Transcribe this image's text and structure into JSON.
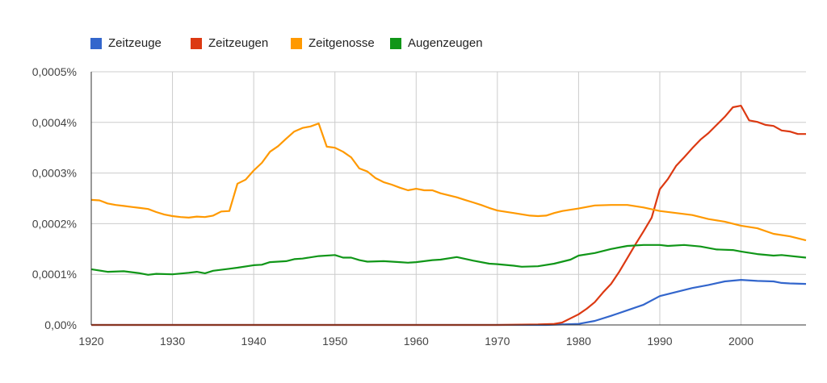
{
  "chart_data": {
    "type": "line",
    "title": "",
    "xlabel": "",
    "ylabel": "",
    "xlim": [
      1920,
      2008
    ],
    "ylim": [
      0,
      0.0005
    ],
    "grid": true,
    "legend_position": "top",
    "x_ticks": [
      1920,
      1930,
      1940,
      1950,
      1960,
      1970,
      1980,
      1990,
      2000
    ],
    "x_tick_labels": [
      "1920",
      "1930",
      "1940",
      "1950",
      "1960",
      "1970",
      "1980",
      "1990",
      "2000"
    ],
    "y_ticks": [
      0,
      0.0001,
      0.0002,
      0.0003,
      0.0004,
      0.0005
    ],
    "y_tick_labels": [
      "0,00%",
      "0,0001%",
      "0,0002%",
      "0,0003%",
      "0,0004%",
      "0,0005%"
    ],
    "y_unit": "% of corpus",
    "series": [
      {
        "name": "Zeitzeuge",
        "color": "#3366cc",
        "points": [
          [
            1920,
            0
          ],
          [
            1930,
            0
          ],
          [
            1940,
            0
          ],
          [
            1950,
            0
          ],
          [
            1960,
            0
          ],
          [
            1970,
            0
          ],
          [
            1976,
            0
          ],
          [
            1978,
            1e-06
          ],
          [
            1980,
            2e-06
          ],
          [
            1982,
            8e-06
          ],
          [
            1984,
            1.8e-05
          ],
          [
            1986,
            2.9e-05
          ],
          [
            1988,
            4e-05
          ],
          [
            1990,
            5.7e-05
          ],
          [
            1992,
            6.5e-05
          ],
          [
            1994,
            7.3e-05
          ],
          [
            1996,
            7.9e-05
          ],
          [
            1998,
            8.6e-05
          ],
          [
            2000,
            8.9e-05
          ],
          [
            2002,
            8.7e-05
          ],
          [
            2004,
            8.6e-05
          ],
          [
            2005,
            8.3e-05
          ],
          [
            2006,
            8.2e-05
          ],
          [
            2008,
            8.1e-05
          ]
        ]
      },
      {
        "name": "Zeitzeugen",
        "color": "#dc3912",
        "points": [
          [
            1920,
            0
          ],
          [
            1930,
            0
          ],
          [
            1940,
            0
          ],
          [
            1950,
            0
          ],
          [
            1960,
            0
          ],
          [
            1970,
            0
          ],
          [
            1975,
            1e-06
          ],
          [
            1977,
            2e-06
          ],
          [
            1978,
            5e-06
          ],
          [
            1979,
            1.3e-05
          ],
          [
            1980,
            2.1e-05
          ],
          [
            1981,
            3.2e-05
          ],
          [
            1982,
            4.5e-05
          ],
          [
            1983,
            6.4e-05
          ],
          [
            1984,
            8.1e-05
          ],
          [
            1985,
            0.000105
          ],
          [
            1986,
            0.000132
          ],
          [
            1987,
            0.000159
          ],
          [
            1988,
            0.000185
          ],
          [
            1989,
            0.000212
          ],
          [
            1990,
            0.000268
          ],
          [
            1991,
            0.000288
          ],
          [
            1992,
            0.000314
          ],
          [
            1993,
            0.000331
          ],
          [
            1994,
            0.000349
          ],
          [
            1995,
            0.000366
          ],
          [
            1996,
            0.000379
          ],
          [
            1997,
            0.000395
          ],
          [
            1998,
            0.000411
          ],
          [
            1999,
            0.00043
          ],
          [
            2000,
            0.000433
          ],
          [
            2001,
            0.000404
          ],
          [
            2002,
            0.000401
          ],
          [
            2003,
            0.000395
          ],
          [
            2004,
            0.000393
          ],
          [
            2005,
            0.000384
          ],
          [
            2006,
            0.000382
          ],
          [
            2007,
            0.000377
          ],
          [
            2008,
            0.000377
          ]
        ]
      },
      {
        "name": "Zeitgenosse",
        "color": "#ff9900",
        "points": [
          [
            1920,
            0.000247
          ],
          [
            1921,
            0.000246
          ],
          [
            1922,
            0.00024
          ],
          [
            1923,
            0.000237
          ],
          [
            1924,
            0.000235
          ],
          [
            1925,
            0.000233
          ],
          [
            1926,
            0.000231
          ],
          [
            1927,
            0.000229
          ],
          [
            1928,
            0.000223
          ],
          [
            1929,
            0.000218
          ],
          [
            1930,
            0.000215
          ],
          [
            1931,
            0.000213
          ],
          [
            1932,
            0.000212
          ],
          [
            1933,
            0.000214
          ],
          [
            1934,
            0.000213
          ],
          [
            1935,
            0.000216
          ],
          [
            1936,
            0.000224
          ],
          [
            1937,
            0.000225
          ],
          [
            1938,
            0.000279
          ],
          [
            1939,
            0.000287
          ],
          [
            1940,
            0.000305
          ],
          [
            1941,
            0.00032
          ],
          [
            1942,
            0.000342
          ],
          [
            1943,
            0.000353
          ],
          [
            1944,
            0.000368
          ],
          [
            1945,
            0.000382
          ],
          [
            1946,
            0.000389
          ],
          [
            1947,
            0.000392
          ],
          [
            1948,
            0.000398
          ],
          [
            1949,
            0.000352
          ],
          [
            1950,
            0.00035
          ],
          [
            1951,
            0.000342
          ],
          [
            1952,
            0.000331
          ],
          [
            1953,
            0.000309
          ],
          [
            1954,
            0.000303
          ],
          [
            1955,
            0.00029
          ],
          [
            1956,
            0.000282
          ],
          [
            1957,
            0.000277
          ],
          [
            1958,
            0.000271
          ],
          [
            1959,
            0.000266
          ],
          [
            1960,
            0.000269
          ],
          [
            1961,
            0.000266
          ],
          [
            1962,
            0.000266
          ],
          [
            1963,
            0.00026
          ],
          [
            1964,
            0.000256
          ],
          [
            1965,
            0.000252
          ],
          [
            1966,
            0.000247
          ],
          [
            1967,
            0.000242
          ],
          [
            1968,
            0.000237
          ],
          [
            1969,
            0.000231
          ],
          [
            1970,
            0.000226
          ],
          [
            1972,
            0.000221
          ],
          [
            1974,
            0.000216
          ],
          [
            1975,
            0.000215
          ],
          [
            1976,
            0.000216
          ],
          [
            1977,
            0.000221
          ],
          [
            1978,
            0.000225
          ],
          [
            1980,
            0.00023
          ],
          [
            1982,
            0.000236
          ],
          [
            1984,
            0.000237
          ],
          [
            1986,
            0.000237
          ],
          [
            1988,
            0.000232
          ],
          [
            1990,
            0.000225
          ],
          [
            1992,
            0.000221
          ],
          [
            1994,
            0.000217
          ],
          [
            1996,
            0.000209
          ],
          [
            1998,
            0.000204
          ],
          [
            2000,
            0.000196
          ],
          [
            2002,
            0.000191
          ],
          [
            2004,
            0.00018
          ],
          [
            2006,
            0.000175
          ],
          [
            2008,
            0.000167
          ]
        ]
      },
      {
        "name": "Augenzeugen",
        "color": "#109618",
        "points": [
          [
            1920,
            0.00011
          ],
          [
            1922,
            0.000105
          ],
          [
            1924,
            0.000106
          ],
          [
            1926,
            0.000102
          ],
          [
            1927,
            9.9e-05
          ],
          [
            1928,
            0.000101
          ],
          [
            1930,
            0.0001
          ],
          [
            1932,
            0.000103
          ],
          [
            1933,
            0.000105
          ],
          [
            1934,
            0.000102
          ],
          [
            1935,
            0.000107
          ],
          [
            1937,
            0.000111
          ],
          [
            1938,
            0.000113
          ],
          [
            1940,
            0.000118
          ],
          [
            1941,
            0.000119
          ],
          [
            1942,
            0.000124
          ],
          [
            1944,
            0.000126
          ],
          [
            1945,
            0.00013
          ],
          [
            1946,
            0.000131
          ],
          [
            1948,
            0.000136
          ],
          [
            1950,
            0.000138
          ],
          [
            1951,
            0.000133
          ],
          [
            1952,
            0.000133
          ],
          [
            1953,
            0.000128
          ],
          [
            1954,
            0.000125
          ],
          [
            1956,
            0.000126
          ],
          [
            1958,
            0.000124
          ],
          [
            1959,
            0.000123
          ],
          [
            1960,
            0.000124
          ],
          [
            1962,
            0.000128
          ],
          [
            1963,
            0.000129
          ],
          [
            1965,
            0.000134
          ],
          [
            1967,
            0.000127
          ],
          [
            1969,
            0.000121
          ],
          [
            1970,
            0.00012
          ],
          [
            1972,
            0.000117
          ],
          [
            1973,
            0.000115
          ],
          [
            1975,
            0.000116
          ],
          [
            1977,
            0.000121
          ],
          [
            1979,
            0.000129
          ],
          [
            1980,
            0.000137
          ],
          [
            1982,
            0.000142
          ],
          [
            1984,
            0.00015
          ],
          [
            1986,
            0.000156
          ],
          [
            1988,
            0.000158
          ],
          [
            1990,
            0.000158
          ],
          [
            1991,
            0.000156
          ],
          [
            1993,
            0.000158
          ],
          [
            1995,
            0.000155
          ],
          [
            1997,
            0.000149
          ],
          [
            1999,
            0.000148
          ],
          [
            2000,
            0.000145
          ],
          [
            2002,
            0.00014
          ],
          [
            2004,
            0.000137
          ],
          [
            2005,
            0.000138
          ],
          [
            2008,
            0.000133
          ]
        ]
      }
    ]
  },
  "legend": {
    "items": [
      {
        "label": "Zeitzeuge",
        "color": "#3366cc"
      },
      {
        "label": "Zeitzeugen",
        "color": "#dc3912"
      },
      {
        "label": "Zeitgenosse",
        "color": "#ff9900"
      },
      {
        "label": "Augenzeugen",
        "color": "#109618"
      }
    ]
  },
  "style": {
    "grid_color": "#cccccc",
    "axis_color": "#333333",
    "background": "#ffffff"
  }
}
